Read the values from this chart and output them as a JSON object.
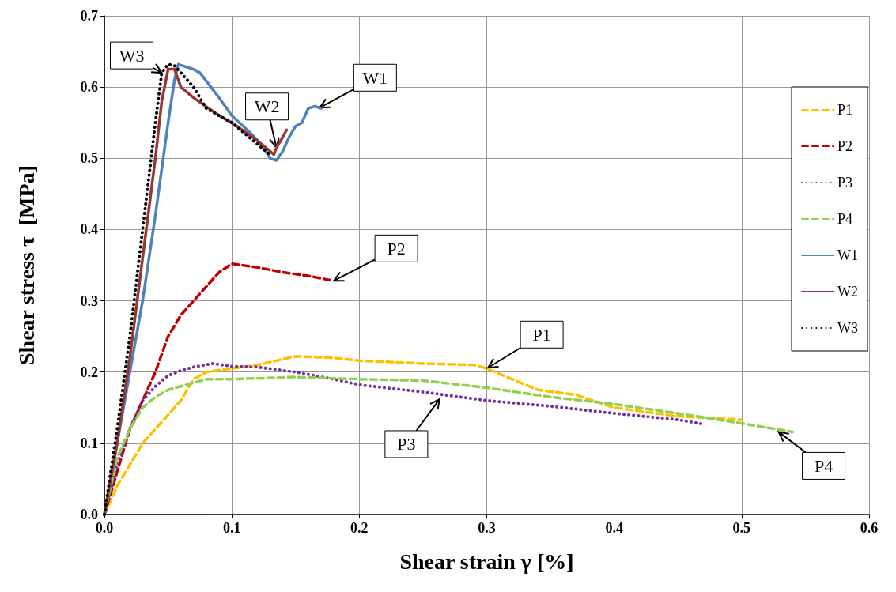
{
  "chart_data": {
    "type": "line",
    "xlabel": "Shear strain γ [%]",
    "ylabel": "Shear stress τ  [MPa]",
    "xlim": [
      0,
      0.6
    ],
    "ylim": [
      0,
      0.7
    ],
    "xticks": [
      {
        "value": 0,
        "label": "0.0"
      },
      0.1,
      0.2,
      0.3,
      0.4,
      0.5,
      0.6
    ],
    "yticks": [
      {
        "value": 0,
        "label": "0.0"
      },
      0.1,
      0.2,
      0.3,
      0.4,
      0.5,
      0.6,
      0.7
    ],
    "grid": true,
    "legend": "right",
    "marker": "none",
    "series": [
      {
        "name": "P1",
        "color": "#ffc000",
        "line_style": "dashed",
        "x": [
          0,
          0.01,
          0.02,
          0.03,
          0.04,
          0.05,
          0.06,
          0.07,
          0.08,
          0.1,
          0.12,
          0.14,
          0.15,
          0.18,
          0.2,
          0.25,
          0.29,
          0.3,
          0.32,
          0.34,
          0.37,
          0.4,
          0.45,
          0.5
        ],
        "values": [
          0,
          0.04,
          0.07,
          0.1,
          0.12,
          0.14,
          0.16,
          0.19,
          0.2,
          0.205,
          0.21,
          0.218,
          0.222,
          0.22,
          0.216,
          0.212,
          0.21,
          0.205,
          0.19,
          0.175,
          0.168,
          0.15,
          0.138,
          0.133
        ]
      },
      {
        "name": "P2",
        "color": "#c00000",
        "line_style": "dashed",
        "x": [
          0,
          0.01,
          0.02,
          0.03,
          0.04,
          0.05,
          0.06,
          0.07,
          0.08,
          0.09,
          0.1,
          0.12,
          0.14,
          0.16,
          0.18
        ],
        "values": [
          0,
          0.06,
          0.12,
          0.16,
          0.2,
          0.25,
          0.28,
          0.3,
          0.32,
          0.34,
          0.352,
          0.347,
          0.34,
          0.335,
          0.328
        ]
      },
      {
        "name": "P3",
        "color": "#7030a0",
        "line_style": "dotted",
        "x": [
          0,
          0.01,
          0.02,
          0.03,
          0.04,
          0.05,
          0.06,
          0.07,
          0.085,
          0.1,
          0.12,
          0.15,
          0.18,
          0.2,
          0.25,
          0.3,
          0.35,
          0.4,
          0.45,
          0.47
        ],
        "values": [
          0,
          0.07,
          0.12,
          0.16,
          0.18,
          0.195,
          0.202,
          0.207,
          0.212,
          0.208,
          0.207,
          0.2,
          0.19,
          0.182,
          0.172,
          0.16,
          0.152,
          0.142,
          0.133,
          0.127
        ]
      },
      {
        "name": "P4",
        "color": "#92d050",
        "line_style": "dashed",
        "x": [
          0,
          0.01,
          0.02,
          0.03,
          0.04,
          0.05,
          0.06,
          0.07,
          0.08,
          0.1,
          0.15,
          0.2,
          0.25,
          0.3,
          0.35,
          0.4,
          0.45,
          0.5,
          0.54
        ],
        "values": [
          0,
          0.08,
          0.12,
          0.15,
          0.165,
          0.175,
          0.18,
          0.185,
          0.19,
          0.19,
          0.193,
          0.19,
          0.188,
          0.178,
          0.165,
          0.155,
          0.142,
          0.128,
          0.116
        ]
      },
      {
        "name": "W1",
        "color": "#4f81bd",
        "line_style": "solid",
        "x": [
          0,
          0.01,
          0.02,
          0.03,
          0.04,
          0.05,
          0.055,
          0.058,
          0.07,
          0.075,
          0.09,
          0.1,
          0.115,
          0.125,
          0.13,
          0.135,
          0.14,
          0.145,
          0.15,
          0.155,
          0.16,
          0.165,
          0.17
        ],
        "values": [
          0,
          0.1,
          0.2,
          0.3,
          0.42,
          0.55,
          0.61,
          0.632,
          0.625,
          0.62,
          0.585,
          0.56,
          0.535,
          0.515,
          0.5,
          0.497,
          0.51,
          0.53,
          0.545,
          0.55,
          0.57,
          0.573,
          0.57
        ]
      },
      {
        "name": "W2",
        "color": "#953735",
        "line_style": "solid",
        "x": [
          0,
          0.01,
          0.02,
          0.03,
          0.04,
          0.045,
          0.05,
          0.055,
          0.06,
          0.07,
          0.09,
          0.1,
          0.12,
          0.13,
          0.133,
          0.135,
          0.14,
          0.143
        ],
        "values": [
          0,
          0.1,
          0.22,
          0.36,
          0.5,
          0.58,
          0.625,
          0.625,
          0.6,
          0.585,
          0.56,
          0.55,
          0.525,
          0.51,
          0.505,
          0.515,
          0.53,
          0.54
        ]
      },
      {
        "name": "W3",
        "color": "#000000",
        "line_style": "dotted",
        "x": [
          0,
          0.01,
          0.02,
          0.03,
          0.04,
          0.045,
          0.05,
          0.055,
          0.06,
          0.07,
          0.08,
          0.1,
          0.12,
          0.13
        ],
        "values": [
          0,
          0.12,
          0.25,
          0.4,
          0.55,
          0.62,
          0.632,
          0.63,
          0.62,
          0.6,
          0.57,
          0.55,
          0.52,
          0.505
        ]
      }
    ],
    "annotations": [
      {
        "text": "W3",
        "x": 0.045,
        "y": 0.62
      },
      {
        "text": "W2",
        "x": 0.135,
        "y": 0.515
      },
      {
        "text": "W1",
        "x": 0.169,
        "y": 0.571
      },
      {
        "text": "P2",
        "x": 0.18,
        "y": 0.328
      },
      {
        "text": "P1",
        "x": 0.301,
        "y": 0.206
      },
      {
        "text": "P3",
        "x": 0.263,
        "y": 0.162
      },
      {
        "text": "P4",
        "x": 0.529,
        "y": 0.116
      }
    ]
  }
}
